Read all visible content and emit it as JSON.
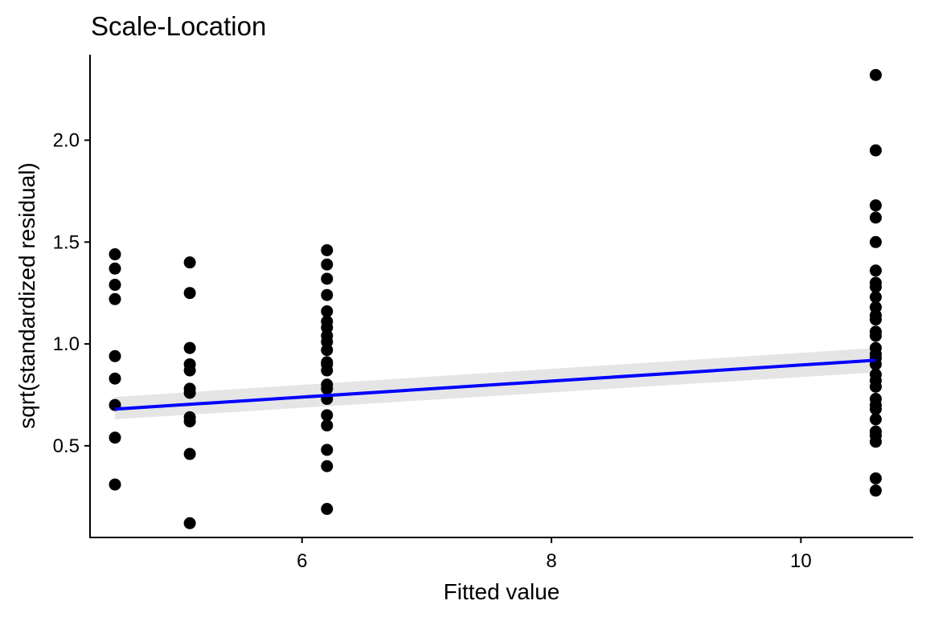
{
  "chart_data": {
    "type": "scatter",
    "title": "Scale-Location",
    "xlabel": "Fitted value",
    "ylabel": "sqrt(standardized residual)",
    "xlim": [
      4.3,
      10.9
    ],
    "ylim": [
      0.05,
      2.42
    ],
    "x_ticks": [
      {
        "value": 6,
        "label": "6"
      },
      {
        "value": 8,
        "label": "8"
      },
      {
        "value": 10,
        "label": "10"
      }
    ],
    "y_ticks": [
      {
        "value": 0.5,
        "label": "0.5"
      },
      {
        "value": 1.0,
        "label": "1.0"
      },
      {
        "value": 1.5,
        "label": "1.5"
      },
      {
        "value": 2.0,
        "label": "2.0"
      }
    ],
    "grid": false,
    "legend": "none",
    "colors": {
      "points": "#000000",
      "smooth_line": "#0000ff",
      "confidence_band": "#e0e0e0",
      "axis": "#000000"
    },
    "points": [
      {
        "x": 4.5,
        "y": 1.44
      },
      {
        "x": 4.5,
        "y": 1.37
      },
      {
        "x": 4.5,
        "y": 1.29
      },
      {
        "x": 4.5,
        "y": 1.22
      },
      {
        "x": 4.5,
        "y": 0.94
      },
      {
        "x": 4.5,
        "y": 0.83
      },
      {
        "x": 4.5,
        "y": 0.7
      },
      {
        "x": 4.5,
        "y": 0.54
      },
      {
        "x": 4.5,
        "y": 0.31
      },
      {
        "x": 5.1,
        "y": 1.4
      },
      {
        "x": 5.1,
        "y": 1.25
      },
      {
        "x": 5.1,
        "y": 0.98
      },
      {
        "x": 5.1,
        "y": 0.9
      },
      {
        "x": 5.1,
        "y": 0.87
      },
      {
        "x": 5.1,
        "y": 0.78
      },
      {
        "x": 5.1,
        "y": 0.76
      },
      {
        "x": 5.1,
        "y": 0.64
      },
      {
        "x": 5.1,
        "y": 0.62
      },
      {
        "x": 5.1,
        "y": 0.46
      },
      {
        "x": 5.1,
        "y": 0.12
      },
      {
        "x": 6.2,
        "y": 1.46
      },
      {
        "x": 6.2,
        "y": 1.39
      },
      {
        "x": 6.2,
        "y": 1.32
      },
      {
        "x": 6.2,
        "y": 1.24
      },
      {
        "x": 6.2,
        "y": 1.16
      },
      {
        "x": 6.2,
        "y": 1.11
      },
      {
        "x": 6.2,
        "y": 1.08
      },
      {
        "x": 6.2,
        "y": 1.04
      },
      {
        "x": 6.2,
        "y": 1.01
      },
      {
        "x": 6.2,
        "y": 0.97
      },
      {
        "x": 6.2,
        "y": 0.91
      },
      {
        "x": 6.2,
        "y": 0.9
      },
      {
        "x": 6.2,
        "y": 0.87
      },
      {
        "x": 6.2,
        "y": 0.8
      },
      {
        "x": 6.2,
        "y": 0.78
      },
      {
        "x": 6.2,
        "y": 0.73
      },
      {
        "x": 6.2,
        "y": 0.65
      },
      {
        "x": 6.2,
        "y": 0.6
      },
      {
        "x": 6.2,
        "y": 0.48
      },
      {
        "x": 6.2,
        "y": 0.4
      },
      {
        "x": 6.2,
        "y": 0.19
      },
      {
        "x": 10.6,
        "y": 2.32
      },
      {
        "x": 10.6,
        "y": 1.95
      },
      {
        "x": 10.6,
        "y": 1.68
      },
      {
        "x": 10.6,
        "y": 1.62
      },
      {
        "x": 10.6,
        "y": 1.5
      },
      {
        "x": 10.6,
        "y": 1.36
      },
      {
        "x": 10.6,
        "y": 1.3
      },
      {
        "x": 10.6,
        "y": 1.28
      },
      {
        "x": 10.6,
        "y": 1.23
      },
      {
        "x": 10.6,
        "y": 1.18
      },
      {
        "x": 10.6,
        "y": 1.14
      },
      {
        "x": 10.6,
        "y": 1.12
      },
      {
        "x": 10.6,
        "y": 1.06
      },
      {
        "x": 10.6,
        "y": 1.04
      },
      {
        "x": 10.6,
        "y": 0.98
      },
      {
        "x": 10.6,
        "y": 0.95
      },
      {
        "x": 10.6,
        "y": 0.93
      },
      {
        "x": 10.6,
        "y": 0.9
      },
      {
        "x": 10.6,
        "y": 0.85
      },
      {
        "x": 10.6,
        "y": 0.82
      },
      {
        "x": 10.6,
        "y": 0.79
      },
      {
        "x": 10.6,
        "y": 0.73
      },
      {
        "x": 10.6,
        "y": 0.7
      },
      {
        "x": 10.6,
        "y": 0.68
      },
      {
        "x": 10.6,
        "y": 0.63
      },
      {
        "x": 10.6,
        "y": 0.57
      },
      {
        "x": 10.6,
        "y": 0.55
      },
      {
        "x": 10.6,
        "y": 0.52
      },
      {
        "x": 10.6,
        "y": 0.34
      },
      {
        "x": 10.6,
        "y": 0.28
      }
    ],
    "smooth_line": {
      "method": "linear",
      "x": [
        4.5,
        10.6
      ],
      "y": [
        0.68,
        0.92
      ],
      "band_lower": [
        0.63,
        0.86
      ],
      "band_upper": [
        0.74,
        0.98
      ]
    }
  }
}
